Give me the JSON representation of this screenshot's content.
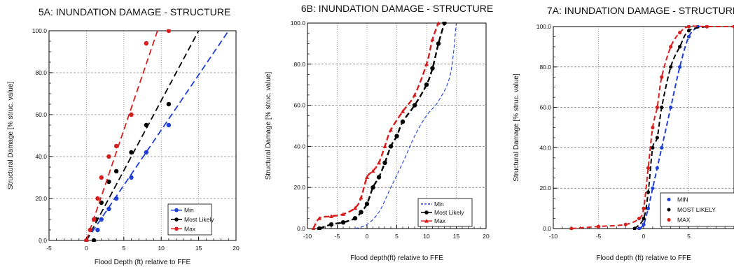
{
  "chart_data": [
    {
      "type": "line",
      "title": "5A: INUNDATION DAMAGE - STRUCTURE",
      "xlabel": "Flood Depth (ft) relative to FFE",
      "ylabel": "Structural Damage [% struc. value]",
      "xlim": [
        -5,
        20
      ],
      "ylim": [
        0,
        100
      ],
      "xticks": [
        -5,
        0,
        5,
        10,
        15,
        20
      ],
      "yticks": [
        0,
        20,
        40,
        60,
        80,
        100
      ],
      "xtick_labels": [
        "-5",
        "0",
        "5",
        "10",
        "15",
        "20"
      ],
      "ytick_labels": [
        "0.0",
        "20.0",
        "40.0",
        "60.0",
        "80.0",
        "100.0"
      ],
      "grid": true,
      "legend_position": "bottom-right",
      "series": [
        {
          "name": "Min",
          "color": "#1f3fd6",
          "lines": [
            [
              0,
              0
            ],
            [
              19,
              100
            ]
          ],
          "points": [
            [
              0,
              0
            ],
            [
              1,
              0
            ],
            [
              1.5,
              5
            ],
            [
              2,
              10
            ],
            [
              3,
              15
            ],
            [
              4,
              20
            ],
            [
              6,
              30
            ],
            [
              8,
              42
            ],
            [
              11,
              55
            ]
          ]
        },
        {
          "name": "Most Likely",
          "color": "#000000",
          "lines": [
            [
              0,
              0
            ],
            [
              15,
              100
            ]
          ],
          "points": [
            [
              0,
              0
            ],
            [
              1,
              0
            ],
            [
              1.3,
              10
            ],
            [
              2,
              18
            ],
            [
              3,
              28
            ],
            [
              4,
              33
            ],
            [
              6,
              42
            ],
            [
              8,
              55
            ],
            [
              11,
              65
            ]
          ]
        },
        {
          "name": "Max",
          "color": "#d81d1d",
          "lines": [
            [
              0,
              0
            ],
            [
              9.5,
              100
            ]
          ],
          "points": [
            [
              0,
              0
            ],
            [
              0.5,
              5
            ],
            [
              1,
              10
            ],
            [
              1.5,
              20
            ],
            [
              2,
              30
            ],
            [
              3,
              40
            ],
            [
              4,
              45
            ],
            [
              6,
              60
            ],
            [
              8,
              94
            ],
            [
              11,
              100
            ]
          ]
        }
      ]
    },
    {
      "type": "line",
      "title": "6B: INUNDATION DAMAGE - STRUCTURE",
      "xlabel": "Flood depth(ft) relative to FFE",
      "ylabel": "Structural Damage [% struc. value]",
      "xlim": [
        -10,
        20
      ],
      "ylim": [
        0,
        100
      ],
      "xticks": [
        -10,
        -5,
        0,
        5,
        10,
        15,
        20
      ],
      "yticks": [
        0,
        20,
        40,
        60,
        80,
        100
      ],
      "xtick_labels": [
        "-10",
        "-5",
        "0",
        "5",
        "10",
        "15",
        "20"
      ],
      "ytick_labels": [
        "0.0",
        "20.0",
        "40.0",
        "60.0",
        "80.0",
        "100.0"
      ],
      "grid": true,
      "legend_position": "bottom-right",
      "series": [
        {
          "name": "Min",
          "color": "#1f3fd6",
          "points": [
            [
              -2,
              0
            ],
            [
              0,
              2
            ],
            [
              2,
              8
            ],
            [
              4,
              20
            ],
            [
              6,
              32
            ],
            [
              8,
              45
            ],
            [
              10,
              55
            ],
            [
              12,
              62
            ],
            [
              14,
              75
            ],
            [
              15,
              100
            ]
          ]
        },
        {
          "name": "Most Likely",
          "color": "#000000",
          "points": [
            [
              -8,
              0
            ],
            [
              -6,
              2
            ],
            [
              -4,
              3
            ],
            [
              -2,
              5
            ],
            [
              -1,
              8
            ],
            [
              0,
              12
            ],
            [
              1,
              20
            ],
            [
              2,
              25
            ],
            [
              3,
              32
            ],
            [
              4,
              40
            ],
            [
              5,
              45
            ],
            [
              6,
              52
            ],
            [
              8,
              60
            ],
            [
              10,
              70
            ],
            [
              11,
              78
            ],
            [
              12,
              90
            ],
            [
              13,
              100
            ]
          ]
        },
        {
          "name": "Max",
          "color": "#d81d1d",
          "points": [
            [
              -9,
              0
            ],
            [
              -8,
              5
            ],
            [
              -6,
              6
            ],
            [
              -4,
              7
            ],
            [
              -2,
              10
            ],
            [
              -1,
              15
            ],
            [
              0,
              25
            ],
            [
              1,
              28
            ],
            [
              2,
              32
            ],
            [
              3,
              40
            ],
            [
              4,
              48
            ],
            [
              6,
              57
            ],
            [
              8,
              65
            ],
            [
              10,
              80
            ],
            [
              11,
              92
            ],
            [
              12,
              100
            ]
          ]
        }
      ]
    },
    {
      "type": "line",
      "title": "7A: INUNDATION DAMAGE - STRUCTURE",
      "xlabel": "Flood depth (ft) relative to FFE",
      "ylabel": "Structural Damage [% struc. value]",
      "xlim": [
        -10,
        10
      ],
      "ylim": [
        0,
        100
      ],
      "xticks": [
        -10,
        -5,
        0,
        5
      ],
      "yticks": [
        0,
        20,
        40,
        60,
        80,
        100
      ],
      "xtick_labels": [
        "-10",
        "-5",
        "0",
        "5"
      ],
      "ytick_labels": [
        "0.0",
        "20.0",
        "40.0",
        "60.0",
        "80.0",
        "100.0"
      ],
      "grid": true,
      "legend_position": "bottom-right",
      "series": [
        {
          "name": "MIN",
          "color": "#1f3fd6",
          "points": [
            [
              -0.5,
              0
            ],
            [
              0,
              2
            ],
            [
              0.5,
              10
            ],
            [
              1,
              20
            ],
            [
              1.5,
              30
            ],
            [
              2,
              40
            ],
            [
              3,
              60
            ],
            [
              4,
              80
            ],
            [
              5,
              95
            ],
            [
              6,
              100
            ]
          ]
        },
        {
          "name": "MOST LIKELY",
          "color": "#000000",
          "points": [
            [
              -1,
              0
            ],
            [
              0,
              5
            ],
            [
              0.5,
              18
            ],
            [
              1,
              40
            ],
            [
              1.5,
              45
            ],
            [
              2,
              60
            ],
            [
              3,
              80
            ],
            [
              4,
              90
            ],
            [
              5,
              98
            ],
            [
              7,
              100
            ]
          ]
        },
        {
          "name": "MAX",
          "color": "#d81d1d",
          "points": [
            [
              -8,
              0
            ],
            [
              -5,
              1
            ],
            [
              -2,
              2
            ],
            [
              -0.5,
              5
            ],
            [
              0,
              10
            ],
            [
              0.5,
              30
            ],
            [
              1,
              50
            ],
            [
              1.5,
              60
            ],
            [
              2,
              75
            ],
            [
              3,
              90
            ],
            [
              4,
              97
            ],
            [
              5,
              100
            ],
            [
              7,
              100
            ],
            [
              10,
              100
            ]
          ]
        }
      ]
    }
  ]
}
